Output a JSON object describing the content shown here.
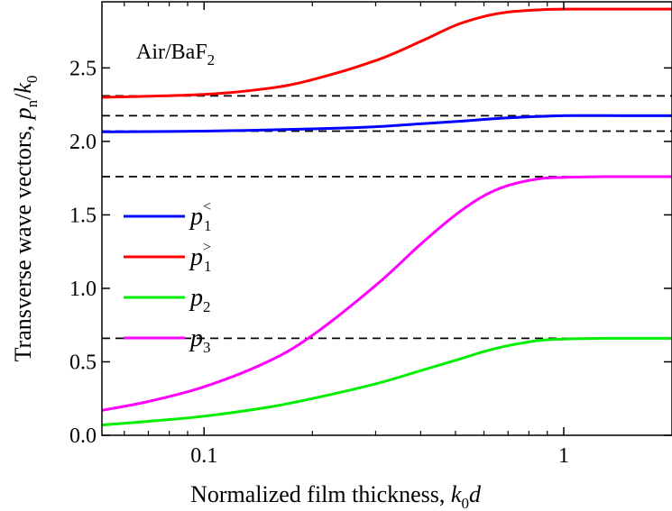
{
  "chart_data": {
    "type": "line",
    "title": "",
    "annotation": {
      "text": "Air/BaF",
      "subscript": "2"
    },
    "xlabel": {
      "text": "Normalized film thickness, ",
      "var1": "k",
      "sub1": "0",
      "var2": "d"
    },
    "ylabel": {
      "text": "Transverse wave vectors, ",
      "var1": "p",
      "sub1": "n",
      "slash": "/",
      "var2": "k",
      "sub2": "0"
    },
    "xscale": "log",
    "xlim": [
      0.052,
      2.0
    ],
    "ylim": [
      0.0,
      2.95
    ],
    "xticks": [
      {
        "value": 0.1,
        "label": "0.1"
      },
      {
        "value": 1,
        "label": "1"
      }
    ],
    "yticks": [
      {
        "value": 0.0,
        "label": "0.0"
      },
      {
        "value": 0.5,
        "label": "0.5"
      },
      {
        "value": 1.0,
        "label": "1.0"
      },
      {
        "value": 1.5,
        "label": "1.5"
      },
      {
        "value": 2.0,
        "label": "2.0"
      },
      {
        "value": 2.5,
        "label": "2.5"
      }
    ],
    "asymptotes": [
      2.31,
      2.175,
      2.07,
      1.76,
      0.66
    ],
    "legend_position": "center-left",
    "series": [
      {
        "name": "p1<",
        "base": "p",
        "sub": "1",
        "sup": "<",
        "color": "#0000ff",
        "x": [
          0.052,
          0.1,
          0.2,
          0.3,
          0.4,
          0.5,
          0.7,
          1.0,
          1.5,
          2.0
        ],
        "y": [
          2.065,
          2.07,
          2.085,
          2.1,
          2.12,
          2.135,
          2.16,
          2.175,
          2.175,
          2.175
        ]
      },
      {
        "name": "p1>",
        "base": "p",
        "sub": "1",
        "sup": ">",
        "color": "#ff0000",
        "x": [
          0.052,
          0.1,
          0.15,
          0.2,
          0.3,
          0.4,
          0.5,
          0.6,
          0.7,
          0.85,
          1.0,
          1.3,
          2.0
        ],
        "y": [
          2.3,
          2.32,
          2.36,
          2.42,
          2.55,
          2.68,
          2.79,
          2.85,
          2.88,
          2.895,
          2.9,
          2.9,
          2.9
        ]
      },
      {
        "name": "p2",
        "base": "p",
        "sub": "2",
        "sup": "",
        "color": "#00ee00",
        "x": [
          0.052,
          0.07,
          0.1,
          0.15,
          0.2,
          0.3,
          0.4,
          0.5,
          0.6,
          0.7,
          0.85,
          1.0,
          1.3,
          2.0
        ],
        "y": [
          0.07,
          0.095,
          0.13,
          0.19,
          0.25,
          0.35,
          0.44,
          0.51,
          0.57,
          0.61,
          0.645,
          0.655,
          0.66,
          0.66
        ]
      },
      {
        "name": "p3",
        "base": "p",
        "sub": "3",
        "sup": "",
        "color": "#ff00ff",
        "x": [
          0.052,
          0.07,
          0.1,
          0.15,
          0.2,
          0.3,
          0.4,
          0.5,
          0.6,
          0.7,
          0.85,
          1.0,
          1.3,
          2.0
        ],
        "y": [
          0.17,
          0.23,
          0.33,
          0.5,
          0.68,
          1.02,
          1.3,
          1.5,
          1.63,
          1.7,
          1.745,
          1.755,
          1.76,
          1.76
        ]
      }
    ]
  }
}
